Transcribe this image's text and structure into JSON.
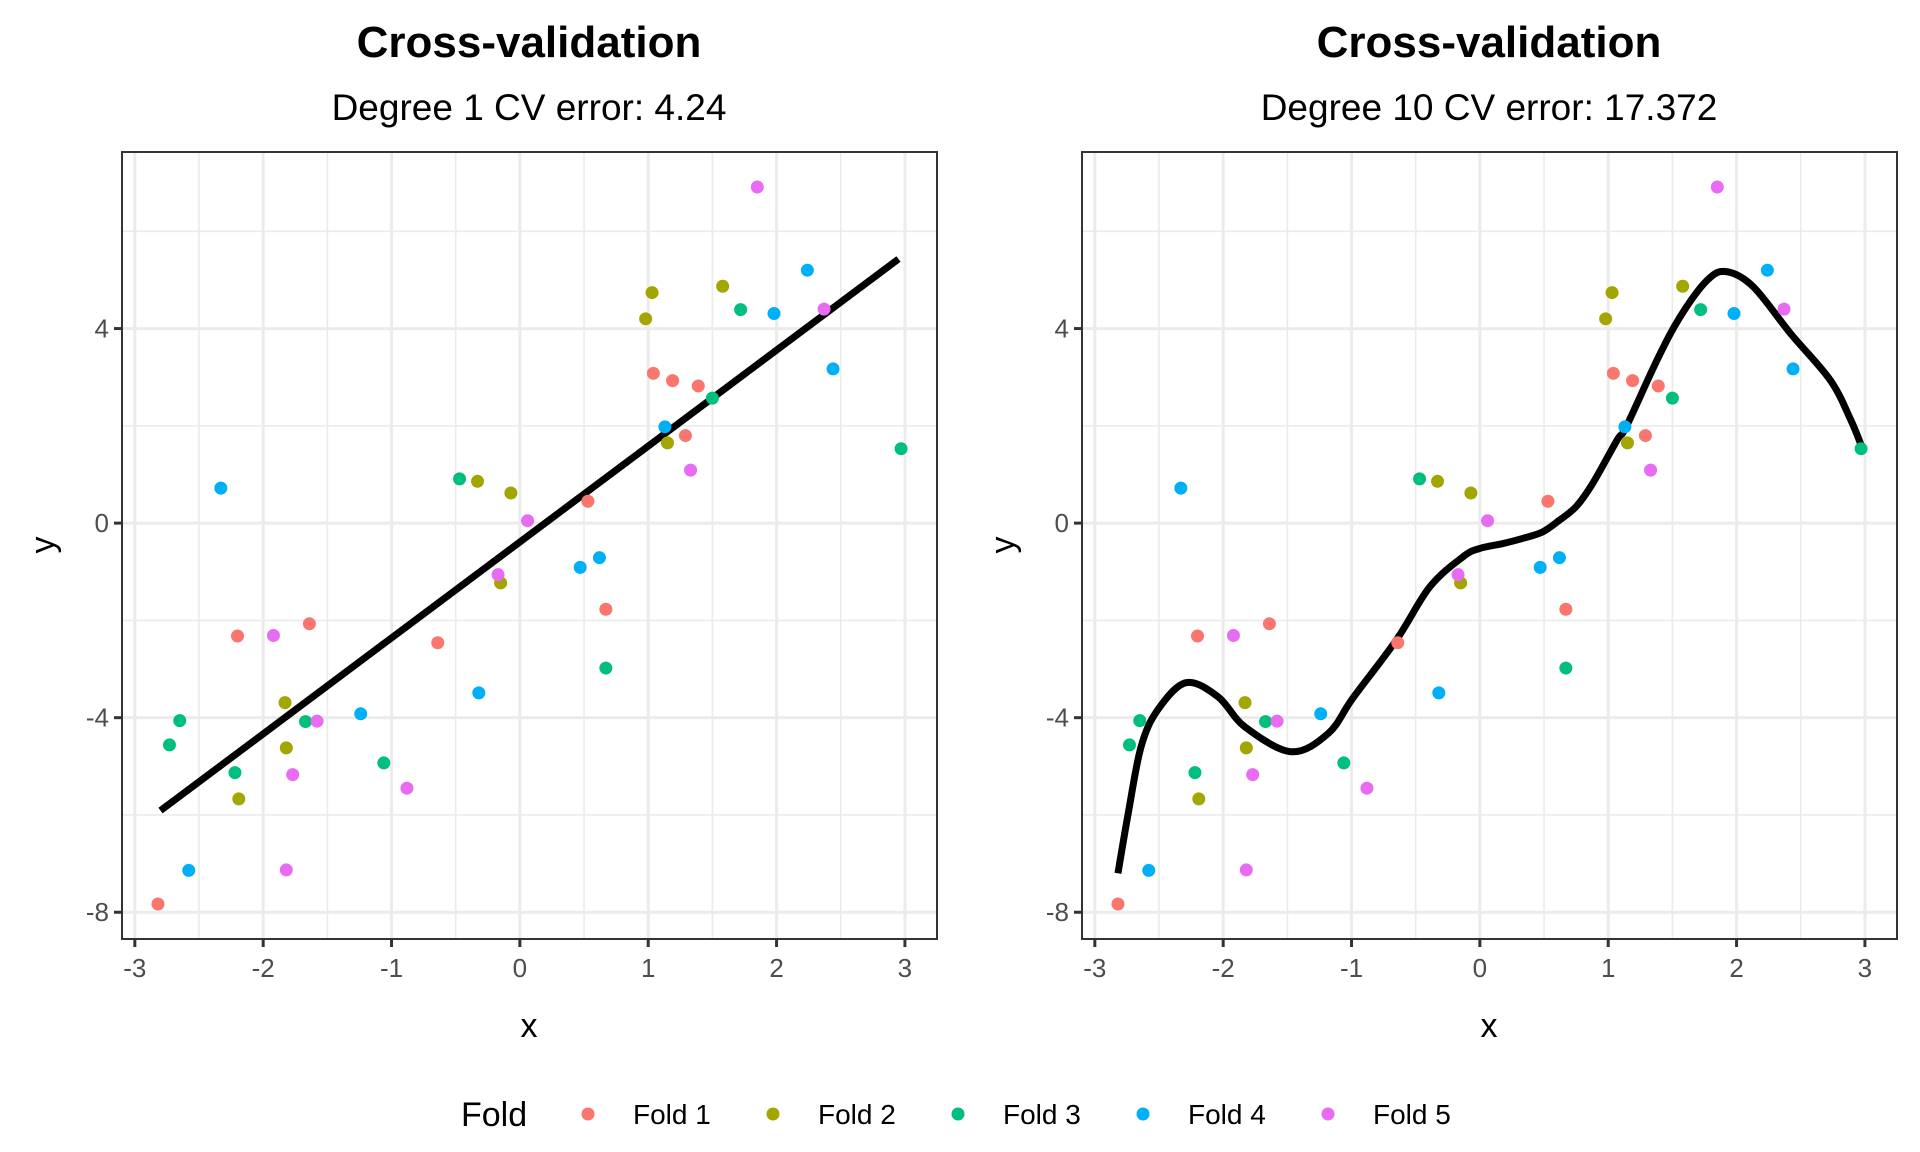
{
  "chart_data": [
    {
      "type": "scatter",
      "title": "Cross-validation",
      "subtitle": "Degree 1 CV error: 4.24",
      "xlabel": "x",
      "ylabel": "y",
      "xlim": [
        -3.1,
        3.25
      ],
      "ylim": [
        -8.55,
        7.63
      ],
      "xticks": [
        -3,
        -2,
        -1,
        0,
        1,
        2,
        3
      ],
      "xtick_labels": [
        "-3",
        "-2",
        "-1",
        "0",
        "1",
        "2",
        "3"
      ],
      "yticks": [
        -8,
        -4,
        0,
        4
      ],
      "ytick_labels": [
        "-8",
        "-4",
        "0",
        "4"
      ],
      "grid": true,
      "fit": {
        "name": "Degree 1 fit",
        "x": [
          -2.8,
          2.95
        ],
        "y": [
          -5.91,
          5.43
        ]
      }
    },
    {
      "type": "scatter",
      "title": "Cross-validation",
      "subtitle": "Degree 10 CV error: 17.372",
      "xlabel": "x",
      "ylabel": "y",
      "xlim": [
        -3.1,
        3.25
      ],
      "ylim": [
        -8.55,
        7.63
      ],
      "xticks": [
        -3,
        -2,
        -1,
        0,
        1,
        2,
        3
      ],
      "xtick_labels": [
        "-3",
        "-2",
        "-1",
        "0",
        "1",
        "2",
        "3"
      ],
      "yticks": [
        -8,
        -4,
        0,
        4
      ],
      "ytick_labels": [
        "-8",
        "-4",
        "0",
        "4"
      ],
      "grid": true,
      "fit": {
        "name": "Degree 10 fit",
        "x": [
          -2.82,
          -2.74,
          -2.64,
          -2.51,
          -2.29,
          -2.04,
          -1.83,
          -1.47,
          -1.18,
          -0.99,
          -0.65,
          -0.39,
          -0.13,
          0.0,
          0.18,
          0.34,
          0.49,
          0.62,
          0.75,
          0.88,
          1.07,
          1.14,
          1.38,
          1.56,
          1.77,
          1.92,
          2.13,
          2.42,
          2.73,
          2.89,
          2.98
        ],
        "y": [
          -7.2,
          -5.97,
          -4.6,
          -3.84,
          -3.28,
          -3.57,
          -4.19,
          -4.7,
          -4.32,
          -3.6,
          -2.4,
          -1.31,
          -0.69,
          -0.52,
          -0.42,
          -0.31,
          -0.18,
          0.06,
          0.34,
          0.82,
          1.71,
          1.98,
          3.35,
          4.24,
          4.99,
          5.17,
          4.86,
          3.9,
          2.94,
          2.12,
          1.54
        ]
      }
    }
  ],
  "series": [
    {
      "name": "Fold 1",
      "color": "#f8766d",
      "x": [
        -2.82,
        -2.2,
        -1.64,
        -0.64,
        0.53,
        0.67,
        1.04,
        1.19,
        1.39,
        1.29
      ],
      "y": [
        -7.83,
        -2.32,
        -2.07,
        -2.46,
        0.45,
        -1.77,
        3.08,
        2.93,
        2.82,
        1.8
      ]
    },
    {
      "name": "Fold 2",
      "color": "#a3a500",
      "x": [
        -2.19,
        -1.83,
        -1.82,
        -0.33,
        -0.15,
        -0.07,
        0.98,
        1.03,
        1.58,
        1.15
      ],
      "y": [
        -5.67,
        -3.69,
        -4.62,
        0.86,
        -1.23,
        0.62,
        4.2,
        4.74,
        4.87,
        1.65
      ]
    },
    {
      "name": "Fold 3",
      "color": "#00bf7d",
      "x": [
        -2.73,
        -2.65,
        -2.22,
        -1.67,
        -1.06,
        -0.47,
        0.67,
        1.5,
        1.72,
        2.97
      ],
      "y": [
        -4.56,
        -4.06,
        -5.13,
        -4.08,
        -4.93,
        0.91,
        -2.98,
        2.57,
        4.39,
        1.53
      ]
    },
    {
      "name": "Fold 4",
      "color": "#00b0f6",
      "x": [
        -2.58,
        -2.33,
        -1.24,
        -0.32,
        0.47,
        0.62,
        1.13,
        1.98,
        2.24,
        2.44
      ],
      "y": [
        -7.14,
        0.72,
        -3.92,
        -3.49,
        -0.91,
        -0.71,
        1.98,
        4.31,
        5.2,
        3.17
      ]
    },
    {
      "name": "Fold 5",
      "color": "#e76bf3",
      "x": [
        -1.82,
        -1.92,
        -1.58,
        -1.77,
        -0.88,
        -0.17,
        0.06,
        1.33,
        1.85,
        2.37
      ],
      "y": [
        -7.13,
        -2.31,
        -4.07,
        -5.17,
        -5.45,
        -1.06,
        0.05,
        1.09,
        6.91,
        4.4
      ]
    }
  ],
  "legend": {
    "title": "Fold",
    "position": "bottom",
    "items": [
      "Fold 1",
      "Fold 2",
      "Fold 3",
      "Fold 4",
      "Fold 5"
    ]
  }
}
